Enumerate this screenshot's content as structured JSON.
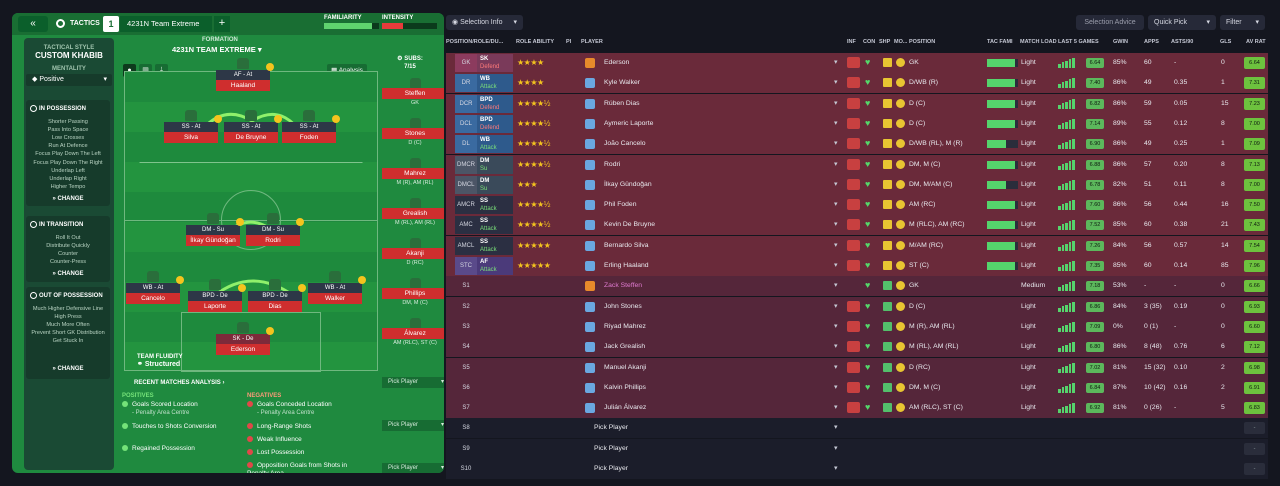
{
  "header": {
    "back_label": "«",
    "tactics_label": "TACTICS",
    "tactic_number": "1",
    "tactic_name": "4231N Team Extreme",
    "add_label": "+",
    "familiarity_label": "FAMILIARITY",
    "intensity_label": "INTENSITY",
    "familiarity_value": 0.88,
    "intensity_value": 0.38
  },
  "sidebar": {
    "style_label": "TACTICAL STYLE",
    "style_value": "CUSTOM KHABIB",
    "mentality_label": "MENTALITY",
    "mentality_value": "Positive",
    "in_possession": {
      "title": "IN POSSESSION",
      "items": [
        "Shorter Passing",
        "Pass Into Space",
        "Low Crosses",
        "Run At Defence",
        "Focus Play Down The Left",
        "Focus Play Down The Right",
        "Underlap Left",
        "Underlap Right",
        "Higher Tempo"
      ],
      "change": "CHANGE"
    },
    "in_transition": {
      "title": "IN TRANSITION",
      "items": [
        "Roll It Out",
        "Distribute Quickly",
        "Counter",
        "Counter-Press"
      ],
      "change": "CHANGE"
    },
    "out_of_possession": {
      "title": "OUT OF POSSESSION",
      "items": [
        "Much Higher Defensive Line",
        "High Press",
        "Much More Often",
        "Prevent Short GK Distribution",
        "Get Stuck In"
      ],
      "change": "CHANGE"
    }
  },
  "formation": {
    "label": "FORMATION",
    "name": "4231N TEAM EXTREME",
    "analysis_label": "Analysis",
    "fluidity_label": "TEAM FLUIDITY",
    "fluidity_value": "Structured",
    "players": [
      {
        "role": "AF - At",
        "name": "Haaland",
        "gk": false
      },
      {
        "role": "SS - At",
        "name": "Silva",
        "gk": false
      },
      {
        "role": "SS - At",
        "name": "De Bruyne",
        "gk": false
      },
      {
        "role": "SS - At",
        "name": "Foden",
        "gk": false
      },
      {
        "role": "DM - Su",
        "name": "İlkay Gündoğan",
        "gk": false
      },
      {
        "role": "DM - Su",
        "name": "Rodri",
        "gk": false
      },
      {
        "role": "WB - At",
        "name": "Cancelo",
        "gk": false
      },
      {
        "role": "BPD - De",
        "name": "Laporte",
        "gk": false
      },
      {
        "role": "BPD - De",
        "name": "Dias",
        "gk": false
      },
      {
        "role": "WB - At",
        "name": "Walker",
        "gk": false
      },
      {
        "role": "SK - De",
        "name": "Ederson",
        "gk": true
      }
    ]
  },
  "subs": {
    "label": "SUBS:",
    "count": "7/15",
    "players": [
      {
        "name": "Steffen",
        "pos": "GK"
      },
      {
        "name": "Stones",
        "pos": "D (C)"
      },
      {
        "name": "Mahrez",
        "pos": "M (R), AM (RL)"
      },
      {
        "name": "Grealish",
        "pos": "M (RL), AM (RL)"
      },
      {
        "name": "Akanji",
        "pos": "D (RC)"
      },
      {
        "name": "Phillips",
        "pos": "DM, M (C)"
      },
      {
        "name": "Álvarez",
        "pos": "AM (RLC), ST (C)"
      }
    ],
    "pick_label": "Pick Player"
  },
  "analysis": {
    "title": "RECENT MATCHES ANALYSIS ›",
    "positives_label": "POSITIVES",
    "positives": [
      {
        "text": "Goals Scored Location",
        "sub": "- Penalty Area Centre"
      },
      {
        "text": "Touches to Shots Conversion",
        "sub": ""
      },
      {
        "text": "Regained Possession",
        "sub": ""
      }
    ],
    "negatives_label": "NEGATIVES",
    "negatives": [
      {
        "text": "Goals Conceded Location",
        "sub": "- Penalty Area Centre"
      },
      {
        "text": "Long-Range Shots",
        "sub": ""
      },
      {
        "text": "Weak Influence",
        "sub": ""
      },
      {
        "text": "Lost Possession",
        "sub": ""
      },
      {
        "text": "Opposition Goals from Shots in Penalty Area",
        "sub": ""
      }
    ]
  },
  "toolbar": {
    "selection_info": "Selection Info",
    "selection_advice": "Selection Advice",
    "quick_pick": "Quick Pick",
    "filter": "Filter"
  },
  "columns": {
    "pos": "POSITION/ROLE/DU...",
    "role_ability": "ROLE ABILITY",
    "pi": "PI",
    "player": "PLAYER",
    "inf": "INF",
    "con": "CON",
    "shp": "SHP",
    "mo": "MO...",
    "position": "POSITION",
    "tac_fam": "TAC FAMI",
    "match_load": "MATCH LOAD",
    "last5": "LAST 5 GAMES",
    "gwin": "GWIN",
    "apps": "APPS",
    "asts": "ASTS/90",
    "gls": "GLS",
    "av_rat": "AV RAT"
  },
  "rows": [
    {
      "slot": "GK",
      "role": "SK",
      "duty": "Defend",
      "stars": "★★★★",
      "name": "Ederson",
      "position": "GK",
      "fam": 0.9,
      "load": "Light",
      "last5": "6.64",
      "gwin": "85%",
      "apps": "60",
      "asts": "-",
      "gls": "0",
      "avrat": "6.64",
      "gk": true,
      "sub": false
    },
    {
      "slot": "DR",
      "role": "WB",
      "duty": "Attack",
      "stars": "★★★★",
      "name": "Kyle Walker",
      "position": "D/WB (R)",
      "fam": 0.9,
      "load": "Light",
      "last5": "7.40",
      "gwin": "86%",
      "apps": "49",
      "asts": "0.35",
      "gls": "1",
      "avrat": "7.31",
      "gk": false,
      "sub": false
    },
    {
      "slot": "DCR",
      "role": "BPD",
      "duty": "Defend",
      "stars": "★★★★½",
      "name": "Rúben Dias",
      "position": "D (C)",
      "fam": 0.9,
      "load": "Light",
      "last5": "6.82",
      "gwin": "86%",
      "apps": "59",
      "asts": "0.05",
      "gls": "15",
      "avrat": "7.23",
      "gk": false,
      "sub": false
    },
    {
      "slot": "DCL",
      "role": "BPD",
      "duty": "Defend",
      "stars": "★★★★½",
      "name": "Aymeric Laporte",
      "position": "D (C)",
      "fam": 0.9,
      "load": "Light",
      "last5": "7.14",
      "gwin": "89%",
      "apps": "55",
      "asts": "0.12",
      "gls": "8",
      "avrat": "7.00",
      "gk": false,
      "sub": false
    },
    {
      "slot": "DL",
      "role": "WB",
      "duty": "Attack",
      "stars": "★★★★½",
      "name": "João Cancelo",
      "position": "D/WB (RL), M (R)",
      "fam": 0.6,
      "load": "Light",
      "last5": "6.90",
      "gwin": "86%",
      "apps": "49",
      "asts": "0.25",
      "gls": "1",
      "avrat": "7.09",
      "gk": false,
      "sub": false
    },
    {
      "slot": "DMCR",
      "role": "DM",
      "duty": "Su",
      "stars": "★★★★½",
      "name": "Rodri",
      "position": "DM, M (C)",
      "fam": 0.9,
      "load": "Light",
      "last5": "6.88",
      "gwin": "86%",
      "apps": "57",
      "asts": "0.20",
      "gls": "8",
      "avrat": "7.13",
      "gk": false,
      "sub": false
    },
    {
      "slot": "DMCL",
      "role": "DM",
      "duty": "Su",
      "stars": "★★★",
      "name": "İlkay Gündoğan",
      "position": "DM, M/AM (C)",
      "fam": 0.6,
      "load": "Light",
      "last5": "6.78",
      "gwin": "82%",
      "apps": "51",
      "asts": "0.11",
      "gls": "8",
      "avrat": "7.00",
      "gk": false,
      "sub": false
    },
    {
      "slot": "AMCR",
      "role": "SS",
      "duty": "Attack",
      "stars": "★★★★½",
      "name": "Phil Foden",
      "position": "AM (RC)",
      "fam": 0.9,
      "load": "Light",
      "last5": "7.60",
      "gwin": "86%",
      "apps": "56",
      "asts": "0.44",
      "gls": "16",
      "avrat": "7.50",
      "gk": false,
      "sub": false
    },
    {
      "slot": "AMC",
      "role": "SS",
      "duty": "Attack",
      "stars": "★★★★½",
      "name": "Kevin De Bruyne",
      "position": "M (RLC), AM (RC)",
      "fam": 0.9,
      "load": "Light",
      "last5": "7.52",
      "gwin": "85%",
      "apps": "60",
      "asts": "0.38",
      "gls": "21",
      "avrat": "7.43",
      "gk": false,
      "sub": false
    },
    {
      "slot": "AMCL",
      "role": "SS",
      "duty": "Attack",
      "stars": "★★★★★",
      "name": "Bernardo Silva",
      "position": "M/AM (RC)",
      "fam": 0.9,
      "load": "Light",
      "last5": "7.26",
      "gwin": "84%",
      "apps": "56",
      "asts": "0.57",
      "gls": "14",
      "avrat": "7.54",
      "gk": false,
      "sub": false
    },
    {
      "slot": "STC",
      "role": "AF",
      "duty": "Attack",
      "stars": "★★★★★",
      "name": "Erling Haaland",
      "position": "ST (C)",
      "fam": 0.9,
      "load": "Light",
      "last5": "7.35",
      "gwin": "85%",
      "apps": "60",
      "asts": "0.14",
      "gls": "85",
      "avrat": "7.96",
      "gk": false,
      "sub": false
    },
    {
      "slot": "S1",
      "role": "",
      "duty": "",
      "stars": "",
      "name": "Zack Steffen",
      "position": "GK",
      "fam": 0,
      "load": "Medium",
      "last5": "7.18",
      "gwin": "53%",
      "apps": "-",
      "asts": "-",
      "gls": "0",
      "avrat": "6.66",
      "gk": true,
      "sub": true
    },
    {
      "slot": "S2",
      "role": "",
      "duty": "",
      "stars": "",
      "name": "John Stones",
      "position": "D (C)",
      "fam": 0,
      "load": "Light",
      "last5": "6.86",
      "gwin": "84%",
      "apps": "3 (35)",
      "asts": "0.19",
      "gls": "0",
      "avrat": "6.93",
      "gk": false,
      "sub": true
    },
    {
      "slot": "S3",
      "role": "",
      "duty": "",
      "stars": "",
      "name": "Riyad Mahrez",
      "position": "M (R), AM (RL)",
      "fam": 0,
      "load": "Light",
      "last5": "7.09",
      "gwin": "0%",
      "apps": "0 (1)",
      "asts": "-",
      "gls": "0",
      "avrat": "6.60",
      "gk": false,
      "sub": true
    },
    {
      "slot": "S4",
      "role": "",
      "duty": "",
      "stars": "",
      "name": "Jack Grealish",
      "position": "M (RL), AM (RL)",
      "fam": 0,
      "load": "Light",
      "last5": "6.80",
      "gwin": "86%",
      "apps": "8 (48)",
      "asts": "0.76",
      "gls": "6",
      "avrat": "7.12",
      "gk": false,
      "sub": true
    },
    {
      "slot": "S5",
      "role": "",
      "duty": "",
      "stars": "",
      "name": "Manuel Akanji",
      "position": "D (RC)",
      "fam": 0,
      "load": "Light",
      "last5": "7.02",
      "gwin": "81%",
      "apps": "15 (32)",
      "asts": "0.10",
      "gls": "2",
      "avrat": "6.98",
      "gk": false,
      "sub": true
    },
    {
      "slot": "S6",
      "role": "",
      "duty": "",
      "stars": "",
      "name": "Kalvin Phillips",
      "position": "DM, M (C)",
      "fam": 0,
      "load": "Light",
      "last5": "6.84",
      "gwin": "87%",
      "apps": "10 (42)",
      "asts": "0.16",
      "gls": "2",
      "avrat": "6.91",
      "gk": false,
      "sub": true
    },
    {
      "slot": "S7",
      "role": "",
      "duty": "",
      "stars": "",
      "name": "Julián Álvarez",
      "position": "AM (RLC), ST (C)",
      "fam": 0,
      "load": "Light",
      "last5": "6.92",
      "gwin": "81%",
      "apps": "0 (26)",
      "asts": "-",
      "gls": "5",
      "avrat": "6.83",
      "gk": false,
      "sub": true
    }
  ],
  "empty_rows": [
    {
      "slot": "S8",
      "label": "Pick Player"
    },
    {
      "slot": "S9",
      "label": "Pick Player"
    },
    {
      "slot": "S10",
      "label": "Pick Player"
    }
  ]
}
